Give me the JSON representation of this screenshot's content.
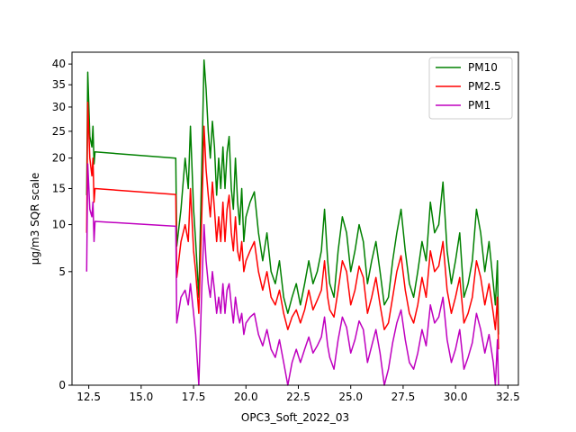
{
  "chart_data": {
    "type": "line",
    "xlabel": "OPC3_Soft_2022_03",
    "ylabel": "µg/m3 SQR scale",
    "y_scale": "square-root",
    "xlim": [
      11.7,
      33.0
    ],
    "ylim": [
      0,
      43
    ],
    "x_ticks": [
      12.5,
      15.0,
      17.5,
      20.0,
      22.5,
      25.0,
      27.5,
      30.0,
      32.5
    ],
    "x_tick_labels": [
      "12.5",
      "15.0",
      "17.5",
      "20.0",
      "22.5",
      "25.0",
      "27.5",
      "30.0",
      "32.5"
    ],
    "y_ticks": [
      0,
      5,
      10,
      15,
      20,
      25,
      30,
      35,
      40
    ],
    "y_tick_labels": [
      "0",
      "5",
      "10",
      "15",
      "20",
      "25",
      "30",
      "35",
      "40"
    ],
    "grid": false,
    "legend_position": "top-right",
    "series": [
      {
        "name": "PM10",
        "color": "#008000",
        "points": [
          [
            12.4,
            14
          ],
          [
            12.45,
            38
          ],
          [
            12.55,
            24
          ],
          [
            12.65,
            22
          ],
          [
            12.7,
            26
          ],
          [
            12.75,
            19
          ],
          [
            12.8,
            21.1
          ],
          [
            16.65,
            20.0
          ],
          [
            16.7,
            7.5
          ],
          [
            16.9,
            12
          ],
          [
            17.1,
            20
          ],
          [
            17.25,
            15
          ],
          [
            17.35,
            26
          ],
          [
            17.5,
            12
          ],
          [
            17.6,
            8
          ],
          [
            17.75,
            3
          ],
          [
            17.9,
            20
          ],
          [
            18.0,
            41
          ],
          [
            18.1,
            34
          ],
          [
            18.2,
            25
          ],
          [
            18.3,
            20
          ],
          [
            18.4,
            27
          ],
          [
            18.5,
            22
          ],
          [
            18.6,
            14
          ],
          [
            18.7,
            20
          ],
          [
            18.8,
            15
          ],
          [
            18.9,
            22
          ],
          [
            19.0,
            15
          ],
          [
            19.1,
            21
          ],
          [
            19.2,
            24
          ],
          [
            19.3,
            15
          ],
          [
            19.4,
            12
          ],
          [
            19.5,
            20
          ],
          [
            19.6,
            13
          ],
          [
            19.7,
            10
          ],
          [
            19.8,
            15
          ],
          [
            19.9,
            8
          ],
          [
            20.0,
            11
          ],
          [
            20.2,
            13
          ],
          [
            20.4,
            14.5
          ],
          [
            20.6,
            9
          ],
          [
            20.8,
            6
          ],
          [
            21.0,
            9
          ],
          [
            21.2,
            5
          ],
          [
            21.4,
            4
          ],
          [
            21.6,
            6
          ],
          [
            21.8,
            3
          ],
          [
            22.0,
            2
          ],
          [
            22.2,
            3
          ],
          [
            22.4,
            4
          ],
          [
            22.6,
            2.5
          ],
          [
            22.8,
            4
          ],
          [
            23.0,
            6
          ],
          [
            23.2,
            4
          ],
          [
            23.4,
            5
          ],
          [
            23.6,
            7
          ],
          [
            23.75,
            12
          ],
          [
            23.9,
            6
          ],
          [
            24.0,
            4
          ],
          [
            24.2,
            3
          ],
          [
            24.4,
            7
          ],
          [
            24.6,
            11
          ],
          [
            24.8,
            9
          ],
          [
            25.0,
            5
          ],
          [
            25.2,
            7
          ],
          [
            25.4,
            10
          ],
          [
            25.6,
            8
          ],
          [
            25.8,
            4
          ],
          [
            26.0,
            6
          ],
          [
            26.2,
            8
          ],
          [
            26.4,
            5
          ],
          [
            26.6,
            2.5
          ],
          [
            26.8,
            3
          ],
          [
            27.0,
            6
          ],
          [
            27.2,
            9
          ],
          [
            27.4,
            12
          ],
          [
            27.6,
            7
          ],
          [
            27.8,
            4
          ],
          [
            28.0,
            3
          ],
          [
            28.2,
            5
          ],
          [
            28.4,
            8
          ],
          [
            28.6,
            6
          ],
          [
            28.8,
            13
          ],
          [
            29.0,
            9
          ],
          [
            29.2,
            10
          ],
          [
            29.4,
            16
          ],
          [
            29.6,
            7
          ],
          [
            29.8,
            4
          ],
          [
            30.0,
            6
          ],
          [
            30.2,
            9
          ],
          [
            30.4,
            3
          ],
          [
            30.6,
            4
          ],
          [
            30.8,
            6
          ],
          [
            31.0,
            12
          ],
          [
            31.2,
            9
          ],
          [
            31.4,
            5
          ],
          [
            31.6,
            8
          ],
          [
            31.8,
            4
          ],
          [
            31.9,
            2.5
          ],
          [
            32.0,
            6
          ],
          [
            32.05,
            1
          ]
        ]
      },
      {
        "name": "PM2.5",
        "color": "#ff0000",
        "points": [
          [
            12.4,
            9
          ],
          [
            12.45,
            31
          ],
          [
            12.55,
            20
          ],
          [
            12.65,
            17
          ],
          [
            12.7,
            20
          ],
          [
            12.75,
            13
          ],
          [
            12.8,
            15.0
          ],
          [
            16.65,
            14.1
          ],
          [
            16.7,
            4.5
          ],
          [
            16.9,
            8
          ],
          [
            17.1,
            10
          ],
          [
            17.25,
            8
          ],
          [
            17.35,
            15
          ],
          [
            17.5,
            7
          ],
          [
            17.6,
            5
          ],
          [
            17.75,
            2
          ],
          [
            17.9,
            12
          ],
          [
            18.0,
            26
          ],
          [
            18.1,
            18
          ],
          [
            18.2,
            14
          ],
          [
            18.3,
            11
          ],
          [
            18.4,
            16
          ],
          [
            18.5,
            12
          ],
          [
            18.6,
            8
          ],
          [
            18.7,
            11
          ],
          [
            18.8,
            8
          ],
          [
            18.9,
            13
          ],
          [
            19.0,
            8
          ],
          [
            19.1,
            12
          ],
          [
            19.2,
            14
          ],
          [
            19.3,
            9
          ],
          [
            19.4,
            7
          ],
          [
            19.5,
            11
          ],
          [
            19.6,
            7
          ],
          [
            19.7,
            6
          ],
          [
            19.8,
            8
          ],
          [
            19.9,
            5
          ],
          [
            20.0,
            6
          ],
          [
            20.2,
            7
          ],
          [
            20.4,
            8
          ],
          [
            20.6,
            5
          ],
          [
            20.8,
            3.5
          ],
          [
            21.0,
            5
          ],
          [
            21.2,
            3
          ],
          [
            21.4,
            2.5
          ],
          [
            21.6,
            3.5
          ],
          [
            21.8,
            2
          ],
          [
            22.0,
            1.2
          ],
          [
            22.2,
            1.8
          ],
          [
            22.4,
            2.2
          ],
          [
            22.6,
            1.5
          ],
          [
            22.8,
            2.2
          ],
          [
            23.0,
            3.5
          ],
          [
            23.2,
            2.2
          ],
          [
            23.4,
            2.8
          ],
          [
            23.6,
            3.5
          ],
          [
            23.75,
            6
          ],
          [
            23.9,
            3
          ],
          [
            24.0,
            2.2
          ],
          [
            24.2,
            1.8
          ],
          [
            24.4,
            3.5
          ],
          [
            24.6,
            6
          ],
          [
            24.8,
            5
          ],
          [
            25.0,
            2.5
          ],
          [
            25.2,
            3.5
          ],
          [
            25.4,
            5.5
          ],
          [
            25.6,
            4.5
          ],
          [
            25.8,
            2
          ],
          [
            26.0,
            3
          ],
          [
            26.2,
            4.5
          ],
          [
            26.4,
            2.5
          ],
          [
            26.6,
            1.2
          ],
          [
            26.8,
            1.5
          ],
          [
            27.0,
            3
          ],
          [
            27.2,
            5
          ],
          [
            27.4,
            6.5
          ],
          [
            27.6,
            3.5
          ],
          [
            27.8,
            2
          ],
          [
            28.0,
            1.5
          ],
          [
            28.2,
            2.5
          ],
          [
            28.4,
            4.5
          ],
          [
            28.6,
            3
          ],
          [
            28.8,
            7
          ],
          [
            29.0,
            5
          ],
          [
            29.2,
            5.5
          ],
          [
            29.4,
            8
          ],
          [
            29.6,
            3.5
          ],
          [
            29.8,
            2
          ],
          [
            30.0,
            3
          ],
          [
            30.2,
            4.5
          ],
          [
            30.4,
            1.5
          ],
          [
            30.6,
            2
          ],
          [
            30.8,
            3
          ],
          [
            31.0,
            6
          ],
          [
            31.2,
            4.5
          ],
          [
            31.4,
            2.5
          ],
          [
            31.6,
            4
          ],
          [
            31.8,
            2
          ],
          [
            31.9,
            1.2
          ],
          [
            32.0,
            3
          ],
          [
            32.05,
            0.5
          ]
        ]
      },
      {
        "name": "PM1",
        "color": "#bf00bf",
        "points": [
          [
            12.4,
            5
          ],
          [
            12.45,
            19
          ],
          [
            12.55,
            12
          ],
          [
            12.65,
            11
          ],
          [
            12.7,
            13
          ],
          [
            12.75,
            8
          ],
          [
            12.8,
            10.4
          ],
          [
            16.65,
            9.8
          ],
          [
            16.7,
            1.5
          ],
          [
            16.9,
            3
          ],
          [
            17.1,
            3.5
          ],
          [
            17.25,
            2.5
          ],
          [
            17.35,
            4
          ],
          [
            17.5,
            2
          ],
          [
            17.6,
            1
          ],
          [
            17.75,
            0
          ],
          [
            17.9,
            4
          ],
          [
            18.0,
            10
          ],
          [
            18.1,
            6
          ],
          [
            18.2,
            4
          ],
          [
            18.3,
            3
          ],
          [
            18.4,
            5
          ],
          [
            18.5,
            3.5
          ],
          [
            18.6,
            2
          ],
          [
            18.7,
            3
          ],
          [
            18.8,
            2
          ],
          [
            18.9,
            4
          ],
          [
            19.0,
            2
          ],
          [
            19.1,
            3.5
          ],
          [
            19.2,
            4
          ],
          [
            19.3,
            2.5
          ],
          [
            19.4,
            1.5
          ],
          [
            19.5,
            3
          ],
          [
            19.6,
            2
          ],
          [
            19.7,
            1.5
          ],
          [
            19.8,
            2
          ],
          [
            19.9,
            1
          ],
          [
            20.0,
            1.5
          ],
          [
            20.2,
            1.8
          ],
          [
            20.4,
            2
          ],
          [
            20.6,
            1
          ],
          [
            20.8,
            0.6
          ],
          [
            21.0,
            1.2
          ],
          [
            21.2,
            0.5
          ],
          [
            21.4,
            0.3
          ],
          [
            21.6,
            0.8
          ],
          [
            21.8,
            0.2
          ],
          [
            22.0,
            0
          ],
          [
            22.2,
            0.2
          ],
          [
            22.4,
            0.5
          ],
          [
            22.6,
            0.2
          ],
          [
            22.8,
            0.5
          ],
          [
            23.0,
            0.9
          ],
          [
            23.2,
            0.4
          ],
          [
            23.4,
            0.6
          ],
          [
            23.6,
            0.9
          ],
          [
            23.75,
            1.8
          ],
          [
            23.9,
            0.6
          ],
          [
            24.0,
            0.3
          ],
          [
            24.2,
            0.1
          ],
          [
            24.4,
            0.8
          ],
          [
            24.6,
            1.8
          ],
          [
            24.8,
            1.3
          ],
          [
            25.0,
            0.4
          ],
          [
            25.2,
            0.8
          ],
          [
            25.4,
            1.6
          ],
          [
            25.6,
            1.2
          ],
          [
            25.8,
            0.2
          ],
          [
            26.0,
            0.6
          ],
          [
            26.2,
            1.2
          ],
          [
            26.4,
            0.4
          ],
          [
            26.6,
            0
          ],
          [
            26.8,
            0.1
          ],
          [
            27.0,
            0.7
          ],
          [
            27.2,
            1.5
          ],
          [
            27.4,
            2.2
          ],
          [
            27.6,
            0.8
          ],
          [
            27.8,
            0.2
          ],
          [
            28.0,
            0.1
          ],
          [
            28.2,
            0.4
          ],
          [
            28.4,
            1.2
          ],
          [
            28.6,
            0.6
          ],
          [
            28.8,
            2.5
          ],
          [
            29.0,
            1.5
          ],
          [
            29.2,
            1.8
          ],
          [
            29.4,
            3
          ],
          [
            29.6,
            0.8
          ],
          [
            29.8,
            0.2
          ],
          [
            30.0,
            0.5
          ],
          [
            30.2,
            1.2
          ],
          [
            30.4,
            0.1
          ],
          [
            30.6,
            0.3
          ],
          [
            30.8,
            0.7
          ],
          [
            31.0,
            2
          ],
          [
            31.2,
            1.2
          ],
          [
            31.4,
            0.4
          ],
          [
            31.6,
            1
          ],
          [
            31.8,
            0.2
          ],
          [
            31.9,
            0
          ],
          [
            32.0,
            0.8
          ],
          [
            32.05,
            0
          ]
        ]
      }
    ]
  }
}
